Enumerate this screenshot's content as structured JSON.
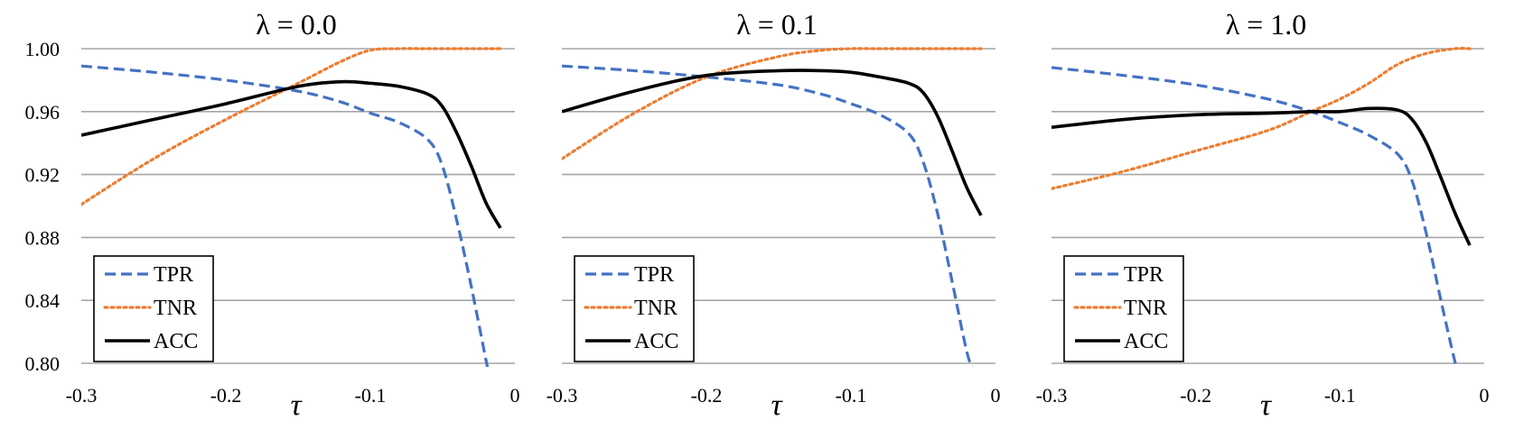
{
  "chart_data": [
    {
      "type": "line",
      "title": "λ = 0.0",
      "xlabel": "τ",
      "ylabel": "",
      "xlim": [
        -0.3,
        0
      ],
      "ylim": [
        0.8,
        1.0
      ],
      "xticks": [
        "-0.3",
        "-0.2",
        "-0.1",
        "0"
      ],
      "yticks": [
        "1.00",
        "0.96",
        "0.92",
        "0.88",
        "0.84",
        "0.80"
      ],
      "grid": true,
      "legend_position": "bottom-left",
      "series": [
        {
          "name": "TPR",
          "style": "dashed",
          "color": "#4472c4",
          "x": [
            -0.3,
            -0.25,
            -0.2,
            -0.15,
            -0.12,
            -0.1,
            -0.08,
            -0.06,
            -0.05,
            -0.04,
            -0.03,
            -0.02,
            -0.015
          ],
          "y": [
            0.989,
            0.985,
            0.98,
            0.973,
            0.966,
            0.959,
            0.953,
            0.942,
            0.925,
            0.89,
            0.848,
            0.802,
            0.78
          ]
        },
        {
          "name": "TNR",
          "style": "dotted",
          "color": "#ed7d31",
          "x": [
            -0.3,
            -0.25,
            -0.2,
            -0.15,
            -0.12,
            -0.1,
            -0.08,
            -0.06,
            -0.04,
            -0.02,
            -0.01
          ],
          "y": [
            0.901,
            0.93,
            0.955,
            0.978,
            0.992,
            0.999,
            1.0,
            1.0,
            1.0,
            1.0,
            1.0
          ]
        },
        {
          "name": "ACC",
          "style": "solid",
          "color": "#000000",
          "x": [
            -0.3,
            -0.25,
            -0.2,
            -0.15,
            -0.12,
            -0.1,
            -0.08,
            -0.06,
            -0.05,
            -0.04,
            -0.03,
            -0.02,
            -0.01
          ],
          "y": [
            0.945,
            0.955,
            0.965,
            0.976,
            0.979,
            0.978,
            0.976,
            0.971,
            0.963,
            0.946,
            0.925,
            0.902,
            0.886
          ]
        }
      ]
    },
    {
      "type": "line",
      "title": "λ = 0.1",
      "xlabel": "τ",
      "ylabel": "",
      "xlim": [
        -0.3,
        0
      ],
      "ylim": [
        0.8,
        1.0
      ],
      "xticks": [
        "-0.3",
        "-0.2",
        "-0.1",
        "0"
      ],
      "yticks": [
        "1.00",
        "0.96",
        "0.92",
        "0.88",
        "0.84",
        "0.80"
      ],
      "grid": true,
      "legend_position": "bottom-left",
      "series": [
        {
          "name": "TPR",
          "style": "dashed",
          "color": "#4472c4",
          "x": [
            -0.3,
            -0.25,
            -0.2,
            -0.15,
            -0.12,
            -0.1,
            -0.08,
            -0.06,
            -0.05,
            -0.04,
            -0.03,
            -0.02,
            -0.015
          ],
          "y": [
            0.989,
            0.986,
            0.982,
            0.977,
            0.971,
            0.965,
            0.958,
            0.946,
            0.928,
            0.895,
            0.852,
            0.808,
            0.795
          ]
        },
        {
          "name": "TNR",
          "style": "dotted",
          "color": "#ed7d31",
          "x": [
            -0.3,
            -0.25,
            -0.2,
            -0.15,
            -0.12,
            -0.1,
            -0.08,
            -0.06,
            -0.04,
            -0.02,
            -0.01
          ],
          "y": [
            0.93,
            0.959,
            0.982,
            0.995,
            0.999,
            1.0,
            1.0,
            1.0,
            1.0,
            1.0,
            1.0
          ]
        },
        {
          "name": "ACC",
          "style": "solid",
          "color": "#000000",
          "x": [
            -0.3,
            -0.25,
            -0.2,
            -0.15,
            -0.12,
            -0.1,
            -0.08,
            -0.06,
            -0.05,
            -0.04,
            -0.03,
            -0.02,
            -0.01
          ],
          "y": [
            0.96,
            0.973,
            0.983,
            0.986,
            0.986,
            0.985,
            0.982,
            0.978,
            0.972,
            0.957,
            0.935,
            0.912,
            0.894
          ]
        }
      ]
    },
    {
      "type": "line",
      "title": "λ = 1.0",
      "xlabel": "τ",
      "ylabel": "",
      "xlim": [
        -0.3,
        0
      ],
      "ylim": [
        0.8,
        1.0
      ],
      "xticks": [
        "-0.3",
        "-0.2",
        "-0.1",
        "0"
      ],
      "yticks": [
        "1.00",
        "0.96",
        "0.92",
        "0.88",
        "0.84",
        "0.80"
      ],
      "grid": true,
      "legend_position": "bottom-left",
      "series": [
        {
          "name": "TPR",
          "style": "dashed",
          "color": "#4472c4",
          "x": [
            -0.3,
            -0.25,
            -0.2,
            -0.15,
            -0.12,
            -0.1,
            -0.08,
            -0.06,
            -0.05,
            -0.04,
            -0.03,
            -0.02,
            -0.015
          ],
          "y": [
            0.988,
            0.983,
            0.977,
            0.968,
            0.96,
            0.953,
            0.945,
            0.933,
            0.916,
            0.882,
            0.84,
            0.8,
            0.785
          ]
        },
        {
          "name": "TNR",
          "style": "dotted",
          "color": "#ed7d31",
          "x": [
            -0.3,
            -0.25,
            -0.2,
            -0.15,
            -0.12,
            -0.1,
            -0.08,
            -0.06,
            -0.04,
            -0.02,
            -0.01
          ],
          "y": [
            0.911,
            0.922,
            0.935,
            0.948,
            0.96,
            0.968,
            0.978,
            0.99,
            0.997,
            1.0,
            1.0
          ]
        },
        {
          "name": "ACC",
          "style": "solid",
          "color": "#000000",
          "x": [
            -0.3,
            -0.25,
            -0.2,
            -0.15,
            -0.12,
            -0.1,
            -0.08,
            -0.06,
            -0.05,
            -0.04,
            -0.03,
            -0.02,
            -0.01
          ],
          "y": [
            0.95,
            0.955,
            0.958,
            0.959,
            0.96,
            0.96,
            0.962,
            0.961,
            0.955,
            0.94,
            0.918,
            0.895,
            0.875
          ]
        }
      ]
    }
  ]
}
